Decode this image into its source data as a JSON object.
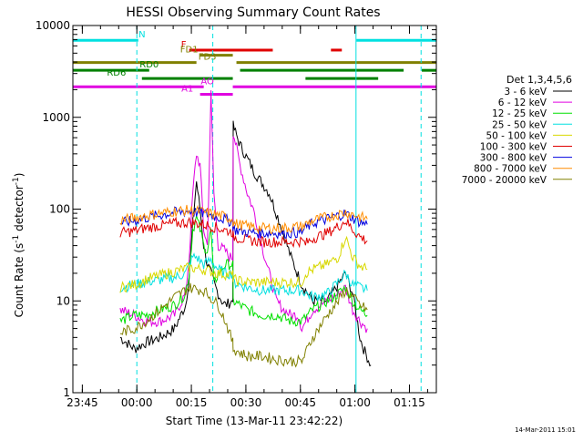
{
  "chart_data": {
    "type": "line",
    "title": "HESSI Observing Summary Count Rates",
    "xlabel": "Start Time (13-Mar-11 23:42:22)",
    "ylabel_main": "Count Rate (s",
    "ylabel_sup": "-1",
    "ylabel_mid": " detector",
    "ylabel_end": ")",
    "x_unit": "minutes since 23:42:22",
    "xlim": [
      0,
      100
    ],
    "ylim": [
      1,
      10000
    ],
    "y_scale": "log",
    "x_ticks": [
      {
        "x": 2.6,
        "label": "23:45"
      },
      {
        "x": 17.6,
        "label": "00:00"
      },
      {
        "x": 32.6,
        "label": "00:15"
      },
      {
        "x": 47.6,
        "label": "00:30"
      },
      {
        "x": 62.6,
        "label": "00:45"
      },
      {
        "x": 77.6,
        "label": "01:00"
      },
      {
        "x": 92.6,
        "label": "01:15"
      }
    ],
    "y_ticks": [
      {
        "y": 1,
        "label": "1"
      },
      {
        "y": 10,
        "label": "10"
      },
      {
        "y": 100,
        "label": "100"
      },
      {
        "y": 1000,
        "label": "1000"
      },
      {
        "y": 10000,
        "label": "10000"
      }
    ],
    "legend_title": "Det 1,3,4,5,6",
    "legend_position": "right",
    "series": [
      {
        "name": "3 - 6 keV",
        "color": "#000000",
        "points": [
          [
            13,
            4
          ],
          [
            17,
            3
          ],
          [
            20,
            3.5
          ],
          [
            24,
            4
          ],
          [
            28,
            5
          ],
          [
            31,
            9
          ],
          [
            32,
            18
          ],
          [
            33,
            70
          ],
          [
            34,
            200
          ],
          [
            35,
            100
          ],
          [
            36,
            40
          ],
          [
            37,
            25
          ],
          [
            38,
            20
          ],
          [
            39,
            15
          ],
          [
            40,
            12
          ],
          [
            41,
            10
          ],
          [
            42,
            9
          ],
          [
            43,
            9.5
          ],
          [
            44,
            10
          ],
          [
            44.1,
            800
          ],
          [
            46,
            500
          ],
          [
            50,
            250
          ],
          [
            54,
            150
          ],
          [
            57,
            70
          ],
          [
            60,
            30
          ],
          [
            63,
            15
          ],
          [
            66,
            10
          ],
          [
            70,
            10
          ],
          [
            73,
            15
          ],
          [
            75,
            20
          ],
          [
            77,
            12
          ],
          [
            79,
            4
          ],
          [
            80,
            3
          ],
          [
            82,
            2
          ]
        ]
      },
      {
        "name": "6 - 12 keV",
        "color": "#e000e0",
        "points": [
          [
            13,
            8
          ],
          [
            17,
            7
          ],
          [
            20,
            6
          ],
          [
            24,
            6
          ],
          [
            28,
            7
          ],
          [
            31,
            12
          ],
          [
            32,
            30
          ],
          [
            33,
            150
          ],
          [
            34,
            400
          ],
          [
            35,
            300
          ],
          [
            36,
            60
          ],
          [
            37,
            40
          ],
          [
            38,
            1800
          ],
          [
            38.8,
            150
          ],
          [
            40,
            40
          ],
          [
            42,
            35
          ],
          [
            43,
            30
          ],
          [
            44,
            30
          ],
          [
            44.1,
            700
          ],
          [
            46,
            300
          ],
          [
            48,
            150
          ],
          [
            50,
            90
          ],
          [
            52,
            40
          ],
          [
            54,
            20
          ],
          [
            56,
            10
          ],
          [
            58,
            8
          ],
          [
            60,
            7
          ],
          [
            62,
            7
          ],
          [
            63,
            5
          ],
          [
            66,
            8
          ],
          [
            70,
            10
          ],
          [
            73,
            12
          ],
          [
            75,
            14
          ],
          [
            77,
            8
          ],
          [
            79,
            6
          ],
          [
            81,
            5
          ]
        ]
      },
      {
        "name": "12 - 25 keV",
        "color": "#00e000",
        "points": [
          [
            13,
            6
          ],
          [
            17,
            7
          ],
          [
            20,
            7
          ],
          [
            24,
            8
          ],
          [
            28,
            9
          ],
          [
            31,
            12
          ],
          [
            32,
            20
          ],
          [
            33,
            60
          ],
          [
            34,
            80
          ],
          [
            35,
            60
          ],
          [
            36,
            40
          ],
          [
            37,
            35
          ],
          [
            38,
            60
          ],
          [
            38.8,
            15
          ],
          [
            40,
            20
          ],
          [
            42,
            25
          ],
          [
            43,
            25
          ],
          [
            44,
            25
          ],
          [
            44.1,
            10
          ],
          [
            48,
            8
          ],
          [
            52,
            7
          ],
          [
            56,
            7
          ],
          [
            60,
            6
          ],
          [
            63,
            6
          ],
          [
            66,
            8
          ],
          [
            70,
            10
          ],
          [
            73,
            12
          ],
          [
            75,
            14
          ],
          [
            77,
            10
          ],
          [
            79,
            8
          ],
          [
            81,
            7
          ]
        ]
      },
      {
        "name": "25 - 50 keV",
        "color": "#00e0e0",
        "points": [
          [
            13,
            14
          ],
          [
            17,
            15
          ],
          [
            20,
            16
          ],
          [
            24,
            17
          ],
          [
            28,
            18
          ],
          [
            31,
            20
          ],
          [
            33,
            30
          ],
          [
            34,
            30
          ],
          [
            36,
            25
          ],
          [
            38,
            28
          ],
          [
            40,
            22
          ],
          [
            42,
            20
          ],
          [
            44,
            20
          ],
          [
            44.1,
            16
          ],
          [
            48,
            14
          ],
          [
            52,
            13
          ],
          [
            56,
            13
          ],
          [
            60,
            13
          ],
          [
            63,
            13
          ],
          [
            66,
            11
          ],
          [
            70,
            12
          ],
          [
            73,
            16
          ],
          [
            75,
            20
          ],
          [
            77,
            15
          ],
          [
            79,
            14
          ],
          [
            81,
            13
          ]
        ]
      },
      {
        "name": "50 - 100 keV",
        "color": "#d8d800",
        "points": [
          [
            13,
            14
          ],
          [
            17,
            15
          ],
          [
            20,
            17
          ],
          [
            24,
            19
          ],
          [
            28,
            21
          ],
          [
            32,
            23
          ],
          [
            36,
            22
          ],
          [
            40,
            20
          ],
          [
            44,
            19
          ],
          [
            44.1,
            17
          ],
          [
            48,
            16
          ],
          [
            52,
            16
          ],
          [
            56,
            16
          ],
          [
            60,
            16
          ],
          [
            63,
            16
          ],
          [
            64,
            20
          ],
          [
            66,
            22
          ],
          [
            70,
            25
          ],
          [
            73,
            30
          ],
          [
            75,
            50
          ],
          [
            77,
            30
          ],
          [
            79,
            24
          ],
          [
            81,
            22
          ]
        ]
      },
      {
        "name": "100 - 300 keV",
        "color": "#e00000",
        "points": [
          [
            13,
            55
          ],
          [
            17,
            58
          ],
          [
            20,
            62
          ],
          [
            24,
            66
          ],
          [
            28,
            70
          ],
          [
            32,
            72
          ],
          [
            36,
            68
          ],
          [
            40,
            62
          ],
          [
            44,
            56
          ],
          [
            44.1,
            50
          ],
          [
            48,
            46
          ],
          [
            52,
            44
          ],
          [
            56,
            44
          ],
          [
            60,
            44
          ],
          [
            63,
            45
          ],
          [
            64,
            42
          ],
          [
            66,
            48
          ],
          [
            70,
            55
          ],
          [
            73,
            65
          ],
          [
            75,
            75
          ],
          [
            77,
            60
          ],
          [
            79,
            50
          ],
          [
            81,
            45
          ]
        ]
      },
      {
        "name": "300 - 800 keV",
        "color": "#0000e0",
        "points": [
          [
            13,
            70
          ],
          [
            17,
            75
          ],
          [
            20,
            80
          ],
          [
            24,
            86
          ],
          [
            28,
            92
          ],
          [
            32,
            95
          ],
          [
            36,
            90
          ],
          [
            40,
            82
          ],
          [
            44,
            72
          ],
          [
            44.1,
            60
          ],
          [
            48,
            56
          ],
          [
            52,
            55
          ],
          [
            56,
            55
          ],
          [
            60,
            55
          ],
          [
            63,
            56
          ],
          [
            64,
            62
          ],
          [
            66,
            70
          ],
          [
            70,
            78
          ],
          [
            73,
            85
          ],
          [
            75,
            90
          ],
          [
            77,
            80
          ],
          [
            79,
            72
          ],
          [
            81,
            68
          ]
        ]
      },
      {
        "name": "800 - 7000 keV",
        "color": "#ff8c00",
        "points": [
          [
            13,
            75
          ],
          [
            17,
            80
          ],
          [
            20,
            85
          ],
          [
            24,
            90
          ],
          [
            28,
            95
          ],
          [
            32,
            97
          ],
          [
            36,
            93
          ],
          [
            40,
            86
          ],
          [
            44,
            78
          ],
          [
            44.1,
            70
          ],
          [
            48,
            65
          ],
          [
            52,
            62
          ],
          [
            56,
            62
          ],
          [
            60,
            63
          ],
          [
            63,
            65
          ],
          [
            64,
            68
          ],
          [
            66,
            75
          ],
          [
            70,
            82
          ],
          [
            73,
            88
          ],
          [
            75,
            92
          ],
          [
            77,
            88
          ],
          [
            79,
            82
          ],
          [
            81,
            78
          ]
        ]
      },
      {
        "name": "7000 - 20000 keV",
        "color": "#808000",
        "points": [
          [
            13,
            4.5
          ],
          [
            17,
            5
          ],
          [
            20,
            6
          ],
          [
            24,
            8
          ],
          [
            28,
            11
          ],
          [
            32,
            14
          ],
          [
            36,
            13
          ],
          [
            40,
            9
          ],
          [
            42,
            6
          ],
          [
            44,
            3.5
          ],
          [
            44.1,
            3
          ],
          [
            48,
            2.5
          ],
          [
            52,
            2.5
          ],
          [
            56,
            2.3
          ],
          [
            60,
            2.2
          ],
          [
            63,
            2.2
          ],
          [
            66,
            4
          ],
          [
            70,
            7
          ],
          [
            73,
            10
          ],
          [
            75,
            13
          ],
          [
            77,
            11
          ],
          [
            79,
            9
          ],
          [
            81,
            8
          ]
        ]
      }
    ],
    "state_bars": [
      {
        "name": "N",
        "color": "#00e0e0",
        "level": 6900,
        "segments": [
          [
            0,
            18
          ],
          [
            78,
            100
          ]
        ],
        "label_x": 19
      },
      {
        "name": "F",
        "color": "#e00000",
        "level": 5400,
        "segments": [
          [
            32,
            55
          ],
          [
            71,
            74
          ]
        ],
        "label_x": 30.5
      },
      {
        "name": "FD1",
        "color": "#808000",
        "level": 4750,
        "segments": [
          [
            35,
            44
          ]
        ],
        "label_x": 32
      },
      {
        "name": "FD3",
        "color": "#808000",
        "level": 3950,
        "segments": [
          [
            0,
            34
          ],
          [
            45,
            100
          ]
        ],
        "label_x": 37
      },
      {
        "name": "RD0",
        "color": "#008000",
        "level": 3250,
        "segments": [
          [
            0,
            21
          ],
          [
            46,
            91
          ],
          [
            96,
            100
          ]
        ],
        "label_x": 21
      },
      {
        "name": "RD6",
        "color": "#008000",
        "level": 2650,
        "segments": [
          [
            19,
            44
          ],
          [
            64,
            84
          ]
        ],
        "label_x": 12
      },
      {
        "name": "AO",
        "color": "#e000e0",
        "level": 2150,
        "segments": [
          [
            0,
            36
          ],
          [
            44,
            100
          ]
        ],
        "label_x": 37
      },
      {
        "name": "A1",
        "color": "#e000e0",
        "level": 1780,
        "segments": [
          [
            35,
            44
          ]
        ],
        "label_x": 31.5
      }
    ],
    "vertical_markers": [
      {
        "name": "night",
        "color": "#00e0e0",
        "dashed": true,
        "x": 17.6
      },
      {
        "name": "flare",
        "color": "#00e0e0",
        "dashed": true,
        "x": 38.5
      },
      {
        "name": "day",
        "color": "#00e0e0",
        "dashed": false,
        "x": 77.9
      },
      {
        "name": "end",
        "color": "#00e0e0",
        "dashed": true,
        "x": 95.8
      }
    ],
    "timestamp": "14-Mar-2011 15:01"
  }
}
